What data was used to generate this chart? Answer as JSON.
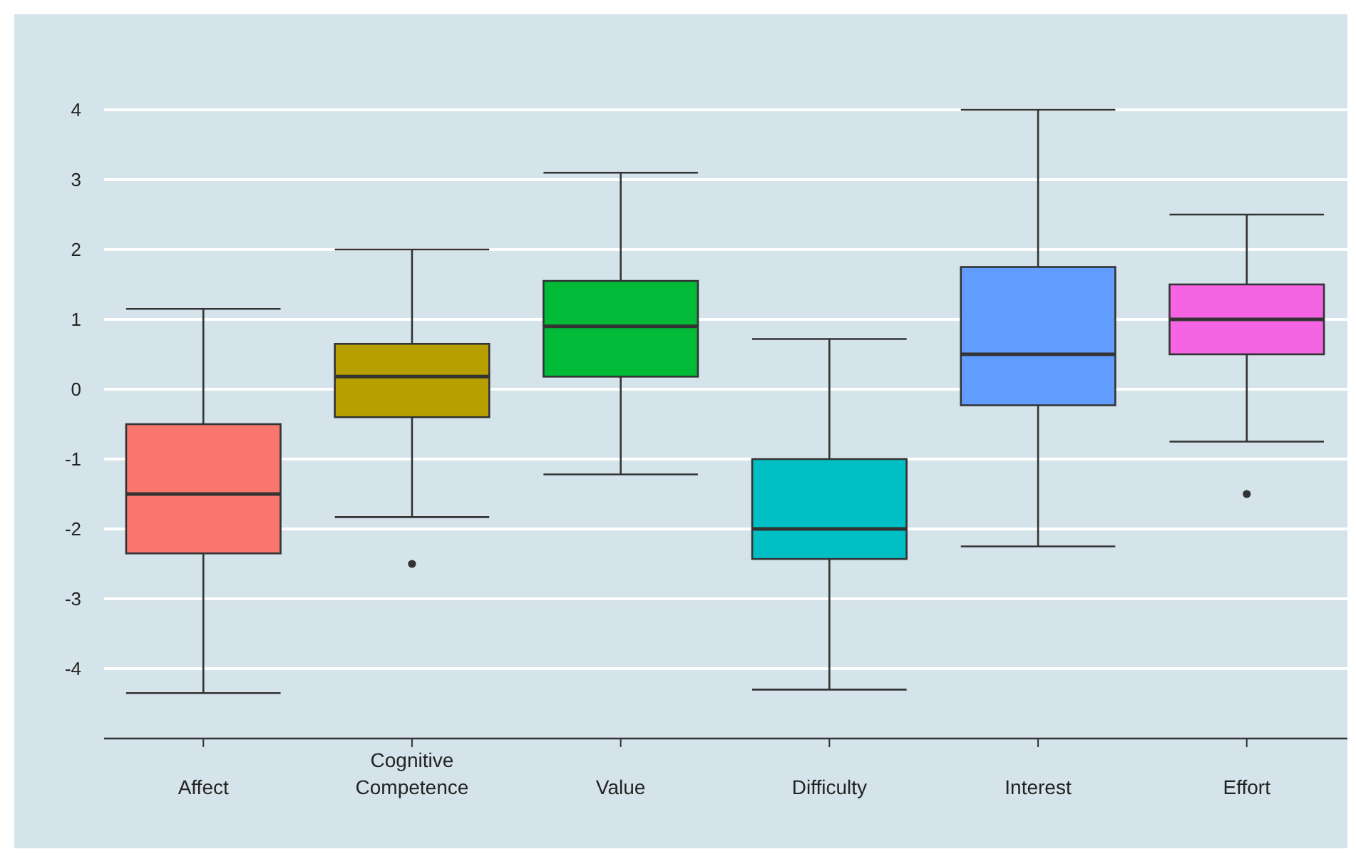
{
  "chart_data": {
    "type": "box",
    "categories": [
      "Affect",
      "Cognitive Competence",
      "Value",
      "Difficulty",
      "Interest",
      "Effort"
    ],
    "boxes": [
      {
        "low": -4.35,
        "q1": -2.35,
        "median": -1.5,
        "q3": -0.5,
        "high": 1.15
      },
      {
        "low": -1.83,
        "q1": -0.4,
        "median": 0.18,
        "q3": 0.65,
        "high": 2.0,
        "outliers": [
          -2.5
        ]
      },
      {
        "low": -1.22,
        "q1": 0.18,
        "median": 0.9,
        "q3": 1.55,
        "high": 3.1
      },
      {
        "low": -4.3,
        "q1": -2.43,
        "median": -2.0,
        "q3": -1.0,
        "high": 0.72
      },
      {
        "low": -2.25,
        "q1": -0.23,
        "median": 0.5,
        "q3": 1.75,
        "high": 4.0
      },
      {
        "low": -0.75,
        "q1": 0.5,
        "median": 1.0,
        "q3": 1.5,
        "high": 2.5,
        "outliers": [
          -1.5
        ]
      }
    ],
    "colors": [
      "#f8766d",
      "#b79f00",
      "#00ba38",
      "#00bfc4",
      "#619cff",
      "#f564e3"
    ],
    "ylim": [
      -5,
      4
    ],
    "yticks": [
      -4,
      -3,
      -2,
      -1,
      0,
      1,
      2,
      3,
      4
    ],
    "grid": "y"
  }
}
